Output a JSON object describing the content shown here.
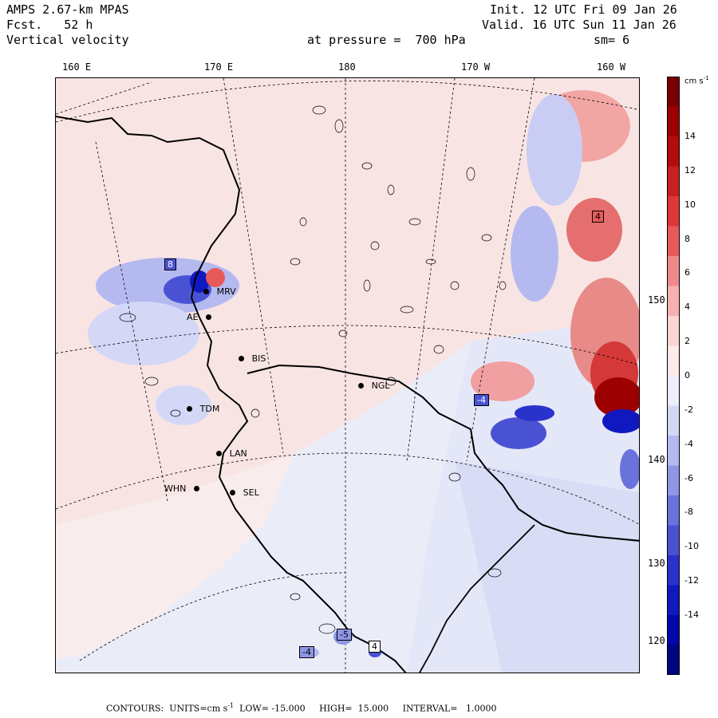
{
  "header": {
    "model": "AMPS 2.67-km MPAS",
    "forecast_label": "Fcst.",
    "forecast_hours": "52 h",
    "field": "Vertical velocity",
    "init": "Init. 12 UTC Fri 09 Jan 26",
    "valid": "Valid. 16 UTC Sun 11 Jan 26",
    "pressure": "at pressure =  700 hPa",
    "smoothing": "sm= 6"
  },
  "longitude_labels": [
    "160 E",
    "170 E",
    "180",
    "170 W",
    "160 W"
  ],
  "latitude_labels": [
    "150 W",
    "140 W",
    "130 W",
    "120 W"
  ],
  "stations": [
    {
      "id": "MRV",
      "label": "MRV"
    },
    {
      "id": "BIS",
      "label": "BIS"
    },
    {
      "id": "NGL",
      "label": "NGL"
    },
    {
      "id": "TDM",
      "label": "TDM"
    },
    {
      "id": "LAN",
      "label": "LAN"
    },
    {
      "id": "WHN",
      "label": "WHN"
    },
    {
      "id": "SEL",
      "label": "SEL"
    },
    {
      "id": "AE",
      "label": "AE"
    }
  ],
  "extrema_boxes": [
    {
      "id": "box-8",
      "label": "8"
    },
    {
      "id": "box-4-east",
      "label": "4"
    },
    {
      "id": "box-neg4-center",
      "label": "-4"
    },
    {
      "id": "box-5",
      "label": "-5"
    },
    {
      "id": "box-4-south",
      "label": "4"
    },
    {
      "id": "box-neg4-south",
      "label": "-4"
    }
  ],
  "colorbar": {
    "units": "cm s",
    "units_exp": "-1",
    "ticks": [
      "14",
      "12",
      "10",
      "8",
      "6",
      "4",
      "2",
      "0",
      "-2",
      "-4",
      "-6",
      "-8",
      "-10",
      "-12",
      "-14"
    ],
    "colors": [
      "#7a0000",
      "#9c0000",
      "#b30c0c",
      "#c82020",
      "#dc3838",
      "#e85a5a",
      "#f08a8a",
      "#f6b0b0",
      "#fbd4d4",
      "#fdeaea",
      "#eceefb",
      "#d4d8f6",
      "#b4baf0",
      "#8e96e6",
      "#6a72dc",
      "#4a52d4",
      "#2a32cc",
      "#1018c0",
      "#0008a8",
      "#000580"
    ]
  },
  "footer": {
    "text": "CONTOURS:  UNITS=cm s",
    "exp": "-1",
    "low": "LOW= -15.000",
    "high": "HIGH=  15.000",
    "interval": "INTERVAL=   1.0000"
  },
  "palette": {
    "background_pink": "#fbe3e1",
    "background_blue": "#eaecf8",
    "upward": "#e05050",
    "downward": "#4a56d0"
  }
}
